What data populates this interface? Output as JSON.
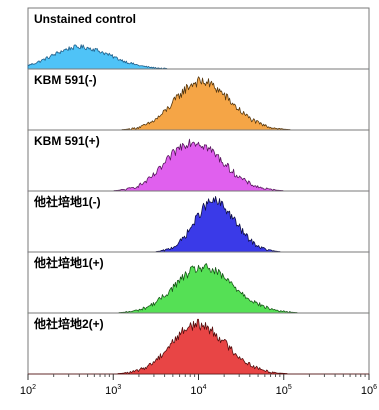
{
  "chart_data": {
    "type": "histogram-stack",
    "x_scale": "log",
    "xlim": [
      100,
      1000000
    ],
    "x_ticks": [
      {
        "value": 100,
        "base": "10",
        "exp": "2"
      },
      {
        "value": 1000,
        "base": "10",
        "exp": "3"
      },
      {
        "value": 10000,
        "base": "10",
        "exp": "4"
      },
      {
        "value": 100000,
        "base": "10",
        "exp": "5"
      },
      {
        "value": 1000000,
        "base": "10",
        "exp": "6"
      }
    ],
    "grid": false,
    "panels": [
      {
        "label": "Unstained control",
        "color": "#4fc3f7",
        "outline": "#1f5f8a",
        "peak_x": 400,
        "spread": 0.32,
        "peak_height": 0.4
      },
      {
        "label": "KBM 591(-)",
        "color": "#f5a546",
        "outline": "#5a3a10",
        "peak_x": 10500,
        "spread": 0.3,
        "peak_height": 0.88
      },
      {
        "label": "KBM 591(+)",
        "color": "#e060ee",
        "outline": "#5a1a60",
        "peak_x": 8500,
        "spread": 0.3,
        "peak_height": 0.9
      },
      {
        "label": "他社培地1(-)",
        "color": "#3a3ae8",
        "outline": "#10104a",
        "peak_x": 15000,
        "spread": 0.22,
        "peak_height": 0.92
      },
      {
        "label": "他社培地1(+)",
        "color": "#55e055",
        "outline": "#1a5a1a",
        "peak_x": 11000,
        "spread": 0.32,
        "peak_height": 0.82
      },
      {
        "label": "他社培地2(+)",
        "color": "#e84545",
        "outline": "#5a1010",
        "peak_x": 9500,
        "spread": 0.3,
        "peak_height": 0.9
      }
    ]
  }
}
